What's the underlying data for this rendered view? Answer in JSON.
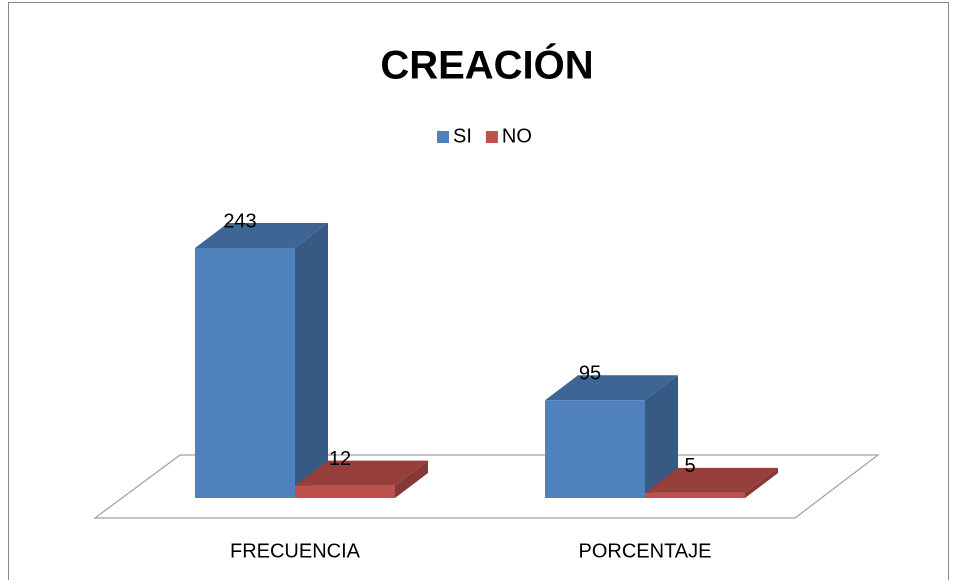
{
  "chart_data": {
    "type": "bar",
    "title": "CREACIÓN",
    "categories": [
      "FRECUENCIA",
      "PORCENTAJE"
    ],
    "series": [
      {
        "name": "SI",
        "color": "#4f81bd",
        "values": [
          243,
          95
        ]
      },
      {
        "name": "NO",
        "color": "#c0504d",
        "values": [
          12,
          5
        ]
      }
    ],
    "legend": "top"
  }
}
